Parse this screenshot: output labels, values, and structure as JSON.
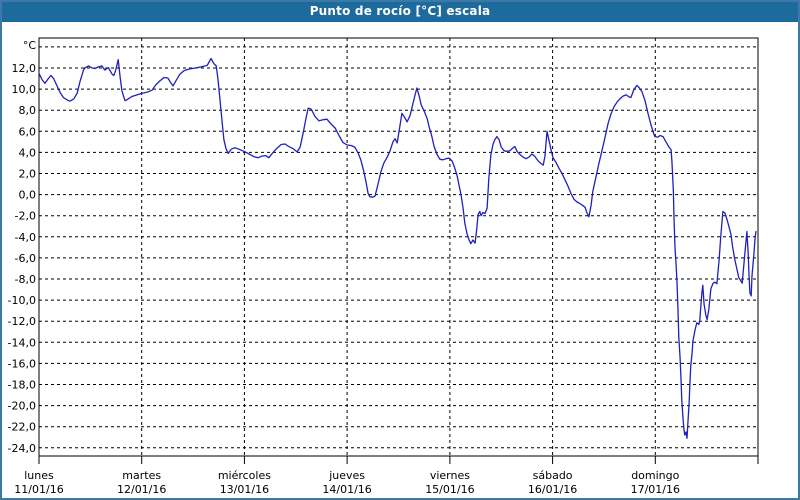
{
  "window": {
    "title": "Punto de rocío [°C] escala"
  },
  "colors": {
    "titlebar": "#1d6a9d",
    "title_text": "#ffffff",
    "window_border": "#3b7aa6",
    "background": "#ffffff",
    "grid": "#000000",
    "axis_text": "#000000",
    "line": "#2020bb"
  },
  "chart_data": {
    "type": "line",
    "title": "Punto de rocío [°C] escala",
    "ylabel": "°C",
    "xlabel": "",
    "grid": "dashed",
    "legend": "none",
    "ylim": [
      -24.8,
      14.8
    ],
    "xlim_hours": [
      0,
      168
    ],
    "y_tick_values": [
      12,
      10,
      8,
      6,
      4,
      2,
      0,
      -2,
      -4,
      -6,
      -8,
      -10,
      -12,
      -14,
      -16,
      -18,
      -20,
      -22,
      -24
    ],
    "y_tick_labels": [
      "12,0",
      "10,0",
      "8,0",
      "6,0",
      "4,0",
      "2,0",
      "0,0",
      "-2,0",
      "-4,0",
      "-6,0",
      "-8,0",
      "-10,0",
      "-12,0",
      "-14,0",
      "-16,0",
      "-18,0",
      "-20,0",
      "-22,0",
      "-24,0"
    ],
    "y_gridline_values": [
      14,
      12,
      10,
      8,
      6,
      4,
      2,
      0,
      -2,
      -4,
      -6,
      -8,
      -10,
      -12,
      -14,
      -16,
      -18,
      -20,
      -22,
      -24
    ],
    "x_days": [
      {
        "name": "lunes",
        "date": "11/01/16",
        "start_hour": 0
      },
      {
        "name": "martes",
        "date": "12/01/16",
        "start_hour": 24
      },
      {
        "name": "miércoles",
        "date": "13/01/16",
        "start_hour": 48
      },
      {
        "name": "jueves",
        "date": "14/01/16",
        "start_hour": 72
      },
      {
        "name": "viernes",
        "date": "15/01/16",
        "start_hour": 96
      },
      {
        "name": "sábado",
        "date": "16/01/16",
        "start_hour": 120
      },
      {
        "name": "domingo",
        "date": "17/01/16",
        "start_hour": 144
      }
    ],
    "series": [
      {
        "name": "Punto de rocío",
        "color": "#2020bb",
        "points": [
          [
            0,
            11.5
          ],
          [
            0.7,
            10.9
          ],
          [
            1.4,
            10.55
          ],
          [
            2.2,
            11.0
          ],
          [
            2.8,
            11.3
          ],
          [
            3.4,
            11.0
          ],
          [
            4.2,
            10.3
          ],
          [
            4.9,
            9.7
          ],
          [
            5.7,
            9.2
          ],
          [
            6.5,
            9.0
          ],
          [
            7.2,
            8.85
          ],
          [
            8.1,
            9.05
          ],
          [
            8.9,
            9.6
          ],
          [
            9.6,
            10.75
          ],
          [
            10.4,
            11.8
          ],
          [
            10.7,
            12.0
          ],
          [
            11.6,
            12.2
          ],
          [
            12.4,
            12.0
          ],
          [
            13.1,
            11.95
          ],
          [
            13.9,
            12.1
          ],
          [
            14.7,
            12.2
          ],
          [
            15.4,
            11.8
          ],
          [
            16.2,
            12.05
          ],
          [
            17.1,
            11.4
          ],
          [
            17.5,
            11.3
          ],
          [
            18.0,
            11.9
          ],
          [
            18.5,
            12.8
          ],
          [
            19.0,
            11.0
          ],
          [
            19.4,
            9.8
          ],
          [
            20.1,
            8.9
          ],
          [
            20.8,
            9.05
          ],
          [
            21.7,
            9.3
          ],
          [
            22.9,
            9.45
          ],
          [
            24.1,
            9.6
          ],
          [
            25.2,
            9.7
          ],
          [
            26.4,
            9.9
          ],
          [
            27.3,
            10.4
          ],
          [
            28.3,
            10.8
          ],
          [
            29.2,
            11.1
          ],
          [
            30.1,
            11.05
          ],
          [
            30.8,
            10.6
          ],
          [
            31.3,
            10.3
          ],
          [
            32.0,
            10.8
          ],
          [
            32.9,
            11.4
          ],
          [
            33.9,
            11.75
          ],
          [
            35.0,
            11.9
          ],
          [
            36.5,
            12.0
          ],
          [
            37.9,
            12.1
          ],
          [
            39.3,
            12.25
          ],
          [
            40.2,
            12.9
          ],
          [
            40.9,
            12.4
          ],
          [
            41.4,
            12.2
          ],
          [
            41.8,
            11.0
          ],
          [
            42.3,
            9.0
          ],
          [
            42.8,
            6.8
          ],
          [
            43.2,
            5.2
          ],
          [
            43.7,
            4.35
          ],
          [
            44.2,
            3.9
          ],
          [
            44.9,
            4.3
          ],
          [
            45.8,
            4.45
          ],
          [
            46.7,
            4.3
          ],
          [
            47.9,
            4.1
          ],
          [
            49.1,
            3.85
          ],
          [
            50.2,
            3.6
          ],
          [
            51.2,
            3.5
          ],
          [
            52.1,
            3.65
          ],
          [
            53.0,
            3.7
          ],
          [
            53.7,
            3.5
          ],
          [
            54.7,
            4.0
          ],
          [
            55.6,
            4.4
          ],
          [
            56.6,
            4.75
          ],
          [
            57.5,
            4.8
          ],
          [
            58.4,
            4.55
          ],
          [
            59.4,
            4.35
          ],
          [
            60.3,
            4.05
          ],
          [
            61.0,
            4.5
          ],
          [
            61.7,
            5.8
          ],
          [
            62.4,
            7.3
          ],
          [
            62.9,
            8.2
          ],
          [
            63.6,
            8.1
          ],
          [
            64.5,
            7.4
          ],
          [
            65.4,
            7.0
          ],
          [
            66.4,
            7.1
          ],
          [
            67.3,
            7.15
          ],
          [
            68.2,
            6.7
          ],
          [
            69.2,
            6.3
          ],
          [
            70.1,
            5.6
          ],
          [
            71.0,
            4.95
          ],
          [
            72.0,
            4.7
          ],
          [
            72.9,
            4.65
          ],
          [
            73.8,
            4.5
          ],
          [
            74.5,
            4.0
          ],
          [
            75.2,
            3.3
          ],
          [
            75.9,
            2.2
          ],
          [
            76.4,
            1.2
          ],
          [
            76.9,
            0.1
          ],
          [
            77.3,
            -0.2
          ],
          [
            78.0,
            -0.25
          ],
          [
            78.5,
            -0.15
          ],
          [
            79.2,
            1.0
          ],
          [
            79.9,
            2.2
          ],
          [
            80.6,
            3.0
          ],
          [
            81.3,
            3.5
          ],
          [
            82.0,
            4.1
          ],
          [
            82.7,
            5.0
          ],
          [
            83.2,
            5.3
          ],
          [
            83.7,
            4.9
          ],
          [
            84.1,
            5.9
          ],
          [
            84.8,
            7.7
          ],
          [
            85.3,
            7.4
          ],
          [
            86.0,
            6.9
          ],
          [
            86.7,
            7.5
          ],
          [
            87.4,
            8.7
          ],
          [
            87.9,
            9.5
          ],
          [
            88.3,
            10.1
          ],
          [
            88.8,
            9.4
          ],
          [
            89.3,
            8.5
          ],
          [
            90.0,
            7.9
          ],
          [
            90.7,
            7.2
          ],
          [
            91.1,
            6.5
          ],
          [
            91.8,
            5.5
          ],
          [
            92.3,
            4.6
          ],
          [
            93.0,
            3.8
          ],
          [
            93.7,
            3.35
          ],
          [
            94.4,
            3.3
          ],
          [
            95.1,
            3.4
          ],
          [
            95.8,
            3.45
          ],
          [
            96.5,
            3.2
          ],
          [
            97.0,
            2.7
          ],
          [
            97.7,
            1.8
          ],
          [
            98.1,
            1.0
          ],
          [
            98.6,
            0.0
          ],
          [
            99.1,
            -1.3
          ],
          [
            99.5,
            -2.7
          ],
          [
            100.0,
            -3.7
          ],
          [
            100.5,
            -4.3
          ],
          [
            100.9,
            -4.65
          ],
          [
            101.4,
            -4.3
          ],
          [
            101.9,
            -4.6
          ],
          [
            102.3,
            -3.2
          ],
          [
            102.6,
            -1.9
          ],
          [
            103.0,
            -1.6
          ],
          [
            103.3,
            -2.0
          ],
          [
            103.7,
            -1.7
          ],
          [
            104.2,
            -1.8
          ],
          [
            104.7,
            -1.3
          ],
          [
            105.1,
            1.5
          ],
          [
            105.6,
            3.8
          ],
          [
            106.1,
            4.8
          ],
          [
            106.5,
            5.2
          ],
          [
            107.0,
            5.5
          ],
          [
            107.5,
            5.2
          ],
          [
            108.0,
            4.5
          ],
          [
            108.7,
            4.15
          ],
          [
            109.3,
            4.1
          ],
          [
            110.0,
            4.15
          ],
          [
            110.8,
            4.45
          ],
          [
            111.2,
            4.55
          ],
          [
            111.7,
            4.1
          ],
          [
            112.4,
            3.8
          ],
          [
            113.1,
            3.55
          ],
          [
            113.8,
            3.4
          ],
          [
            114.5,
            3.55
          ],
          [
            115.2,
            3.85
          ],
          [
            115.9,
            3.6
          ],
          [
            116.6,
            3.2
          ],
          [
            117.3,
            2.95
          ],
          [
            117.8,
            2.8
          ],
          [
            118.2,
            3.6
          ],
          [
            118.7,
            6.0
          ],
          [
            119.2,
            5.1
          ],
          [
            119.6,
            4.3
          ],
          [
            120.1,
            3.5
          ],
          [
            120.8,
            3.05
          ],
          [
            121.5,
            2.5
          ],
          [
            122.2,
            2.0
          ],
          [
            122.9,
            1.4
          ],
          [
            123.6,
            0.8
          ],
          [
            124.3,
            0.1
          ],
          [
            125.0,
            -0.45
          ],
          [
            125.7,
            -0.7
          ],
          [
            126.4,
            -0.85
          ],
          [
            127.1,
            -1.05
          ],
          [
            127.6,
            -1.2
          ],
          [
            128.0,
            -1.7
          ],
          [
            128.5,
            -2.1
          ],
          [
            129.0,
            -1.0
          ],
          [
            129.4,
            0.3
          ],
          [
            130.1,
            1.6
          ],
          [
            130.8,
            2.9
          ],
          [
            131.5,
            4.1
          ],
          [
            132.3,
            5.5
          ],
          [
            133.0,
            6.8
          ],
          [
            133.7,
            7.7
          ],
          [
            134.4,
            8.35
          ],
          [
            135.1,
            8.8
          ],
          [
            135.8,
            9.1
          ],
          [
            136.5,
            9.35
          ],
          [
            137.2,
            9.45
          ],
          [
            137.9,
            9.25
          ],
          [
            138.3,
            9.2
          ],
          [
            139.0,
            9.95
          ],
          [
            139.7,
            10.35
          ],
          [
            140.2,
            10.15
          ],
          [
            140.9,
            9.75
          ],
          [
            141.6,
            8.9
          ],
          [
            142.3,
            7.7
          ],
          [
            143.0,
            6.6
          ],
          [
            143.7,
            5.7
          ],
          [
            143.9,
            5.5
          ],
          [
            144.6,
            5.45
          ],
          [
            145.1,
            5.6
          ],
          [
            145.8,
            5.5
          ],
          [
            146.5,
            5.0
          ],
          [
            147.2,
            4.5
          ],
          [
            147.7,
            4.25
          ],
          [
            147.9,
            3.0
          ],
          [
            148.2,
            0.5
          ],
          [
            148.4,
            -2.5
          ],
          [
            148.6,
            -5.0
          ],
          [
            148.9,
            -7.0
          ],
          [
            149.1,
            -8.5
          ],
          [
            149.3,
            -11.0
          ],
          [
            149.5,
            -13.5
          ],
          [
            149.8,
            -15.5
          ],
          [
            150.0,
            -17.5
          ],
          [
            150.2,
            -19.5
          ],
          [
            150.5,
            -21.3
          ],
          [
            150.7,
            -22.3
          ],
          [
            150.9,
            -22.8
          ],
          [
            151.2,
            -22.5
          ],
          [
            151.4,
            -23.1
          ],
          [
            151.6,
            -21.8
          ],
          [
            151.9,
            -19.8
          ],
          [
            152.1,
            -17.7
          ],
          [
            152.3,
            -16.2
          ],
          [
            152.6,
            -15.0
          ],
          [
            152.8,
            -13.9
          ],
          [
            153.3,
            -12.8
          ],
          [
            153.7,
            -12.15
          ],
          [
            154.2,
            -12.3
          ],
          [
            154.4,
            -11.9
          ],
          [
            154.9,
            -9.3
          ],
          [
            155.1,
            -8.6
          ],
          [
            155.4,
            -10.4
          ],
          [
            155.8,
            -11.4
          ],
          [
            156.1,
            -11.85
          ],
          [
            156.5,
            -10.9
          ],
          [
            157.0,
            -8.9
          ],
          [
            157.5,
            -8.4
          ],
          [
            157.9,
            -8.3
          ],
          [
            158.4,
            -8.45
          ],
          [
            158.9,
            -6.2
          ],
          [
            159.3,
            -3.9
          ],
          [
            159.8,
            -1.6
          ],
          [
            160.3,
            -1.75
          ],
          [
            160.7,
            -2.3
          ],
          [
            161.2,
            -3.0
          ],
          [
            161.7,
            -3.8
          ],
          [
            162.1,
            -5.0
          ],
          [
            162.6,
            -6.2
          ],
          [
            163.1,
            -7.1
          ],
          [
            163.5,
            -7.85
          ],
          [
            164.0,
            -8.2
          ],
          [
            164.3,
            -8.4
          ],
          [
            164.7,
            -6.6
          ],
          [
            165.2,
            -4.4
          ],
          [
            165.4,
            -3.5
          ],
          [
            165.7,
            -5.6
          ],
          [
            165.9,
            -7.6
          ],
          [
            166.1,
            -9.3
          ],
          [
            166.4,
            -9.6
          ],
          [
            166.6,
            -7.7
          ],
          [
            167.1,
            -5.4
          ],
          [
            167.3,
            -4.2
          ],
          [
            167.5,
            -3.5
          ]
        ]
      }
    ]
  }
}
